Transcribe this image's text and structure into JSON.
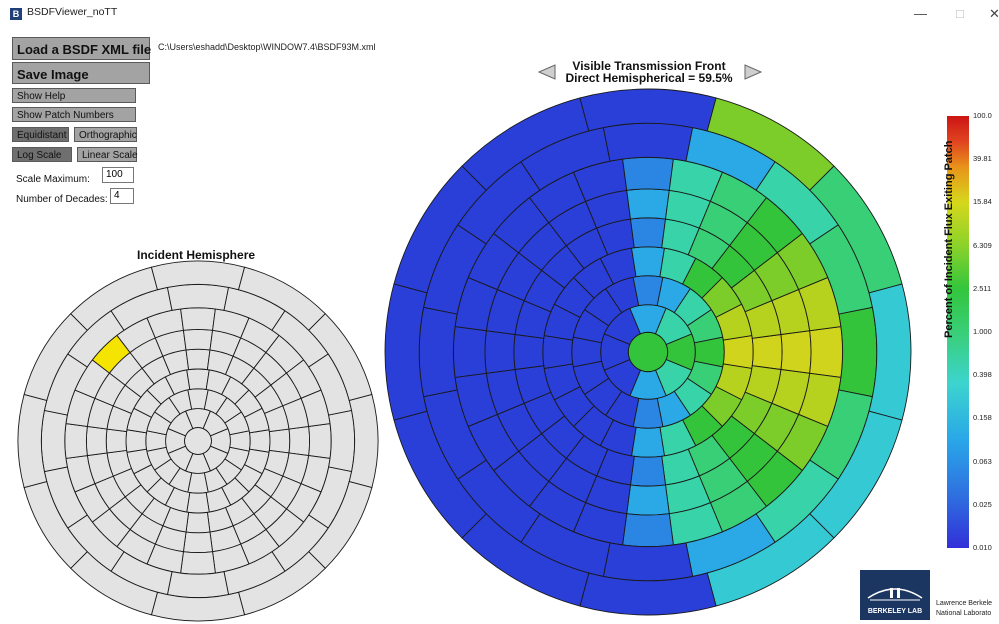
{
  "window": {
    "title": "BSDFViewer_noTT",
    "app_icon": "B"
  },
  "toolbar": {
    "load_label": "Load a BSDF XML file",
    "save_label": "Save Image",
    "help_label": "Show Help",
    "patch_numbers_label": "Show Patch Numbers",
    "equidistant_label": "Equidistant",
    "orthographic_label": "Orthographic",
    "log_scale_label": "Log Scale",
    "linear_scale_label": "Linear Scale"
  },
  "file_path": "C:\\Users\\eshadd\\Desktop\\WINDOW7.4\\BSDF93M.xml",
  "settings": {
    "scale_max_label": "Scale Maximum:",
    "scale_max_value": "100",
    "decades_label": "Number of Decades:",
    "decades_value": "4"
  },
  "incident": {
    "title": "Incident Hemisphere"
  },
  "view": {
    "title": "Visible Transmission Front",
    "subtitle": "Direct Hemispherical = 59.5%",
    "prev_icon": "left-triangle",
    "next_icon": "right-triangle"
  },
  "colorbar": {
    "label": "Percent of Incident Flux Exiting Patch",
    "ticks": [
      "100.0",
      "39.81",
      "15.84",
      "6.309",
      "2.511",
      "1.000",
      "0.398",
      "0.158",
      "0.063",
      "0.025",
      "0.010"
    ]
  },
  "logo": {
    "text": "BERKELEY LAB",
    "org_line1": "Lawrence Berkele",
    "org_line2": "National Laborato"
  },
  "colors": {
    "button_gray": "#a3a3a3",
    "button_active": "#6f6f6f",
    "highlight": "#f5e300",
    "cold": "#2a3ed8",
    "hot": "#cc1414"
  }
}
